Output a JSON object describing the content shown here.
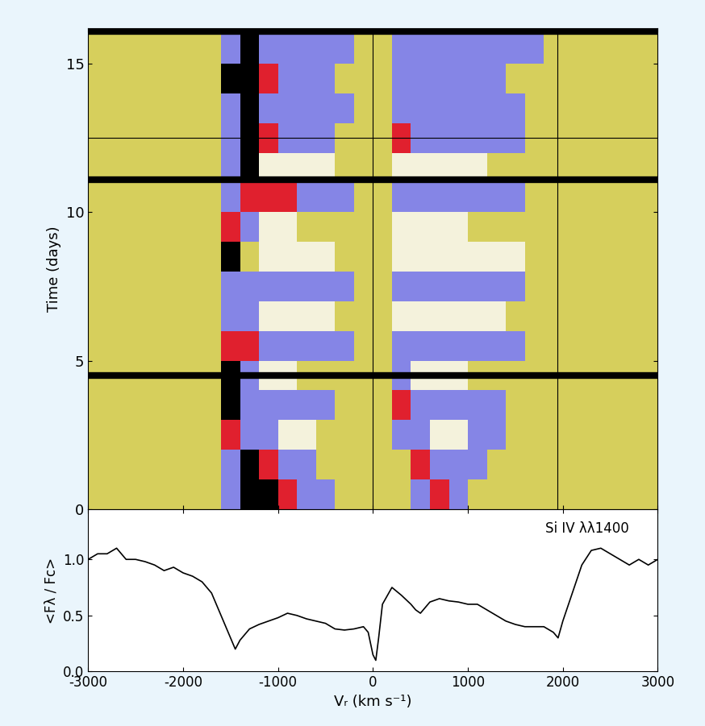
{
  "chart_data": [
    {
      "type": "heatmap",
      "ylabel": "Time (days)",
      "xlim": [
        -3000,
        3000
      ],
      "ylim": [
        0,
        16.2
      ],
      "xticks": [
        -3000,
        -2000,
        -1000,
        0,
        1000,
        2000,
        3000
      ],
      "yticks": [
        0,
        5,
        10,
        15
      ],
      "tick_labels": "y",
      "x_edges": [
        -3000,
        -2800,
        -2600,
        -2400,
        -2200,
        -2000,
        -1800,
        -1600,
        -1400,
        -1200,
        -1000,
        -800,
        -600,
        -400,
        -200,
        0,
        200,
        400,
        600,
        800,
        1000,
        1200,
        1400,
        1600,
        1800,
        2000,
        2200,
        2400,
        2600,
        2800,
        3000
      ],
      "y_edges": [
        0,
        1,
        2,
        3,
        4,
        5,
        6,
        7,
        8,
        9,
        10,
        11,
        12,
        13,
        14,
        15,
        16
      ],
      "colors": [
        "#d6cf5c",
        "#f4f2dc",
        "#8585e6",
        "#e0202e",
        "#000000"
      ],
      "cells": [
        [
          0,
          0,
          0,
          0,
          0,
          0,
          0,
          2,
          4,
          4,
          3,
          2,
          2,
          0,
          0,
          0,
          0,
          2,
          3,
          2,
          0,
          0,
          0,
          0,
          0,
          0,
          0,
          0,
          0,
          0
        ],
        [
          0,
          0,
          0,
          0,
          0,
          0,
          0,
          2,
          4,
          3,
          2,
          2,
          0,
          0,
          0,
          0,
          0,
          3,
          2,
          2,
          2,
          0,
          0,
          0,
          0,
          0,
          0,
          0,
          0,
          0
        ],
        [
          0,
          0,
          0,
          0,
          0,
          0,
          0,
          3,
          2,
          2,
          1,
          1,
          0,
          0,
          0,
          0,
          2,
          2,
          1,
          1,
          2,
          2,
          0,
          0,
          0,
          0,
          0,
          0,
          0,
          0
        ],
        [
          0,
          0,
          0,
          0,
          0,
          0,
          0,
          4,
          2,
          2,
          2,
          2,
          2,
          0,
          0,
          0,
          3,
          2,
          2,
          2,
          2,
          2,
          0,
          0,
          0,
          0,
          0,
          0,
          0,
          0
        ],
        [
          0,
          0,
          0,
          0,
          0,
          0,
          0,
          4,
          2,
          1,
          1,
          0,
          0,
          0,
          0,
          0,
          2,
          1,
          1,
          1,
          0,
          0,
          0,
          0,
          0,
          0,
          0,
          0,
          0,
          0
        ],
        [
          0,
          0,
          0,
          0,
          0,
          0,
          0,
          3,
          3,
          2,
          2,
          2,
          2,
          2,
          0,
          0,
          2,
          2,
          2,
          2,
          2,
          2,
          2,
          0,
          0,
          0,
          0,
          0,
          0,
          0
        ],
        [
          0,
          0,
          0,
          0,
          0,
          0,
          0,
          2,
          2,
          1,
          1,
          1,
          1,
          0,
          0,
          0,
          1,
          1,
          1,
          1,
          1,
          1,
          0,
          0,
          0,
          0,
          0,
          0,
          0,
          0
        ],
        [
          0,
          0,
          0,
          0,
          0,
          0,
          0,
          2,
          2,
          2,
          2,
          2,
          2,
          2,
          0,
          0,
          2,
          2,
          2,
          2,
          2,
          2,
          2,
          0,
          0,
          0,
          0,
          0,
          0,
          0
        ],
        [
          0,
          0,
          0,
          0,
          0,
          0,
          0,
          4,
          0,
          1,
          1,
          1,
          1,
          0,
          0,
          0,
          1,
          1,
          1,
          1,
          1,
          1,
          1,
          0,
          0,
          0,
          0,
          0,
          0,
          0
        ],
        [
          0,
          0,
          0,
          0,
          0,
          0,
          0,
          3,
          2,
          1,
          1,
          0,
          0,
          0,
          0,
          0,
          1,
          1,
          1,
          1,
          0,
          0,
          0,
          0,
          0,
          0,
          0,
          0,
          0,
          0
        ],
        [
          0,
          0,
          0,
          0,
          0,
          0,
          0,
          2,
          3,
          3,
          3,
          2,
          2,
          2,
          0,
          0,
          2,
          2,
          2,
          2,
          2,
          2,
          2,
          0,
          0,
          0,
          0,
          0,
          0,
          0
        ],
        [
          0,
          0,
          0,
          0,
          0,
          0,
          0,
          2,
          4,
          1,
          1,
          1,
          1,
          0,
          0,
          0,
          1,
          1,
          1,
          1,
          1,
          0,
          0,
          0,
          0,
          0,
          0,
          0,
          0,
          0
        ],
        [
          0,
          0,
          0,
          0,
          0,
          0,
          0,
          2,
          4,
          3,
          2,
          2,
          2,
          0,
          0,
          0,
          3,
          2,
          2,
          2,
          2,
          2,
          2,
          0,
          0,
          0,
          0,
          0,
          0,
          0
        ],
        [
          0,
          0,
          0,
          0,
          0,
          0,
          0,
          2,
          4,
          2,
          2,
          2,
          2,
          2,
          0,
          0,
          2,
          2,
          2,
          2,
          2,
          2,
          2,
          0,
          0,
          0,
          0,
          0,
          0,
          0
        ],
        [
          0,
          0,
          0,
          0,
          0,
          0,
          0,
          4,
          4,
          3,
          2,
          2,
          2,
          0,
          0,
          0,
          2,
          2,
          2,
          2,
          2,
          2,
          0,
          0,
          0,
          0,
          0,
          0,
          0,
          0
        ],
        [
          0,
          0,
          0,
          0,
          0,
          0,
          0,
          2,
          4,
          2,
          2,
          2,
          2,
          2,
          0,
          0,
          2,
          2,
          2,
          2,
          2,
          2,
          2,
          2,
          0,
          0,
          0,
          0,
          0,
          0
        ]
      ],
      "gaps": [
        4.5,
        11.1,
        16.1
      ],
      "hlines": [
        12.5
      ],
      "vlines": [
        0,
        1940
      ]
    },
    {
      "type": "line",
      "xlabel": "Vᵣ (km s⁻¹)",
      "ylabel": "<Fλ / Fc>",
      "annotation": "Si IV λλ1400",
      "xlim": [
        -3000,
        3000
      ],
      "ylim": [
        0,
        1.45
      ],
      "xticks": [
        -3000,
        -2000,
        -1000,
        0,
        1000,
        2000,
        3000
      ],
      "yticks": [
        {
          "value": 0,
          "label": "0.0"
        },
        {
          "value": 0.5,
          "label": "0.5"
        },
        {
          "value": 1,
          "label": "1.0"
        }
      ],
      "color": "#000000",
      "x": [
        -3000,
        -2900,
        -2800,
        -2700,
        -2600,
        -2500,
        -2400,
        -2300,
        -2200,
        -2100,
        -2000,
        -1900,
        -1800,
        -1700,
        -1600,
        -1500,
        -1450,
        -1400,
        -1300,
        -1200,
        -1100,
        -1000,
        -900,
        -800,
        -700,
        -600,
        -500,
        -400,
        -300,
        -200,
        -100,
        -50,
        0,
        30,
        60,
        100,
        200,
        300,
        400,
        450,
        500,
        600,
        700,
        800,
        900,
        1000,
        1100,
        1200,
        1300,
        1400,
        1500,
        1600,
        1700,
        1800,
        1900,
        1950,
        2000,
        2100,
        2200,
        2300,
        2400,
        2500,
        2600,
        2700,
        2800,
        2900,
        3000
      ],
      "values": [
        1.0,
        1.05,
        1.05,
        1.1,
        1.0,
        1.0,
        0.98,
        0.95,
        0.9,
        0.93,
        0.88,
        0.85,
        0.8,
        0.7,
        0.5,
        0.3,
        0.2,
        0.28,
        0.38,
        0.42,
        0.45,
        0.48,
        0.52,
        0.5,
        0.47,
        0.45,
        0.43,
        0.38,
        0.37,
        0.38,
        0.4,
        0.35,
        0.15,
        0.1,
        0.3,
        0.6,
        0.75,
        0.68,
        0.6,
        0.55,
        0.52,
        0.62,
        0.65,
        0.63,
        0.62,
        0.6,
        0.6,
        0.55,
        0.5,
        0.45,
        0.42,
        0.4,
        0.4,
        0.4,
        0.35,
        0.3,
        0.45,
        0.7,
        0.95,
        1.08,
        1.1,
        1.05,
        1.0,
        0.95,
        1.0,
        0.95,
        1.0
      ]
    }
  ]
}
